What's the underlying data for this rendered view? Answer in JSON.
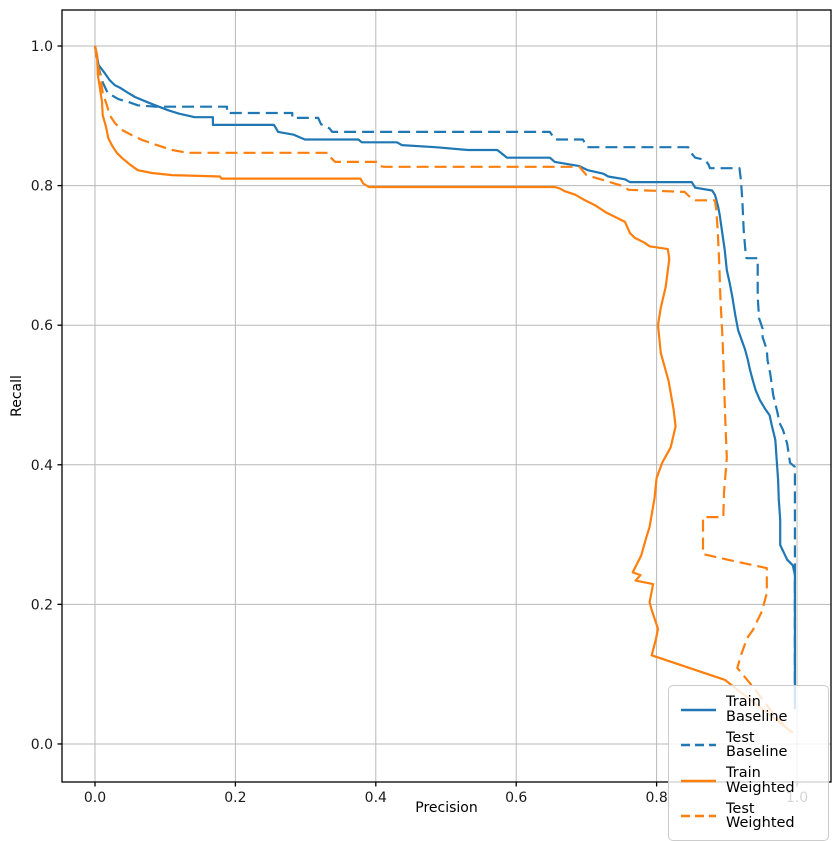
{
  "figure": {
    "background": "#ffffff",
    "grid_color": "#b8b8b8",
    "spine_color": "#000000",
    "tick_label_color": "#1a1a1a",
    "legend_border_color": "#cccccc"
  },
  "chart_data": {
    "type": "line",
    "title": "",
    "xlabel": "Precision",
    "ylabel": "Recall",
    "xlim": [
      -0.047,
      1.0484
    ],
    "ylim": [
      -0.0545,
      1.0516
    ],
    "xticks": [
      0.0,
      0.2,
      0.4,
      0.6,
      0.8,
      1.0
    ],
    "yticks": [
      0.0,
      0.2,
      0.4,
      0.6,
      0.8,
      1.0
    ],
    "xtick_labels": [
      "0.0",
      "0.2",
      "0.4",
      "0.6",
      "0.8",
      "1.0"
    ],
    "ytick_labels": [
      "0.0",
      "0.2",
      "0.4",
      "0.6",
      "0.8",
      "1.0"
    ],
    "grid": true,
    "legend_position": "lower right",
    "series": [
      {
        "name": "Train Baseline",
        "color": "#1f77b4",
        "style": "solid",
        "points": [
          [
            0.0,
            1.0
          ],
          [
            0.003,
            0.985
          ],
          [
            0.005,
            0.973
          ],
          [
            0.014,
            0.961
          ],
          [
            0.021,
            0.951
          ],
          [
            0.028,
            0.944
          ],
          [
            0.036,
            0.94
          ],
          [
            0.047,
            0.933
          ],
          [
            0.057,
            0.927
          ],
          [
            0.078,
            0.918
          ],
          [
            0.104,
            0.908
          ],
          [
            0.12,
            0.903
          ],
          [
            0.142,
            0.898
          ],
          [
            0.168,
            0.898
          ],
          [
            0.168,
            0.887
          ],
          [
            0.255,
            0.887
          ],
          [
            0.261,
            0.877
          ],
          [
            0.283,
            0.873
          ],
          [
            0.299,
            0.866
          ],
          [
            0.375,
            0.866
          ],
          [
            0.38,
            0.862
          ],
          [
            0.43,
            0.862
          ],
          [
            0.437,
            0.858
          ],
          [
            0.485,
            0.855
          ],
          [
            0.531,
            0.851
          ],
          [
            0.573,
            0.851
          ],
          [
            0.587,
            0.84
          ],
          [
            0.648,
            0.84
          ],
          [
            0.655,
            0.834
          ],
          [
            0.69,
            0.828
          ],
          [
            0.702,
            0.822
          ],
          [
            0.724,
            0.817
          ],
          [
            0.731,
            0.813
          ],
          [
            0.755,
            0.809
          ],
          [
            0.762,
            0.805
          ],
          [
            0.85,
            0.805
          ],
          [
            0.855,
            0.797
          ],
          [
            0.879,
            0.793
          ],
          [
            0.883,
            0.787
          ],
          [
            0.885,
            0.78
          ],
          [
            0.888,
            0.768
          ],
          [
            0.89,
            0.757
          ],
          [
            0.893,
            0.736
          ],
          [
            0.897,
            0.708
          ],
          [
            0.9,
            0.679
          ],
          [
            0.904,
            0.661
          ],
          [
            0.908,
            0.64
          ],
          [
            0.912,
            0.615
          ],
          [
            0.916,
            0.593
          ],
          [
            0.921,
            0.579
          ],
          [
            0.926,
            0.565
          ],
          [
            0.93,
            0.55
          ],
          [
            0.933,
            0.536
          ],
          [
            0.937,
            0.521
          ],
          [
            0.941,
            0.507
          ],
          [
            0.947,
            0.493
          ],
          [
            0.954,
            0.481
          ],
          [
            0.961,
            0.471
          ],
          [
            0.964,
            0.457
          ],
          [
            0.969,
            0.436
          ],
          [
            0.971,
            0.407
          ],
          [
            0.973,
            0.378
          ],
          [
            0.974,
            0.35
          ],
          [
            0.976,
            0.321
          ],
          [
            0.976,
            0.285
          ],
          [
            0.986,
            0.264
          ],
          [
            0.994,
            0.256
          ],
          [
            0.997,
            0.242
          ],
          [
            0.997,
            0.05
          ]
        ]
      },
      {
        "name": "Test Baseline",
        "color": "#1f77b4",
        "style": "dashed",
        "points": [
          [
            0.0,
            1.0
          ],
          [
            0.004,
            0.973
          ],
          [
            0.011,
            0.948
          ],
          [
            0.018,
            0.933
          ],
          [
            0.033,
            0.924
          ],
          [
            0.047,
            0.92
          ],
          [
            0.061,
            0.915
          ],
          [
            0.086,
            0.913
          ],
          [
            0.188,
            0.913
          ],
          [
            0.188,
            0.904
          ],
          [
            0.281,
            0.904
          ],
          [
            0.281,
            0.897
          ],
          [
            0.318,
            0.897
          ],
          [
            0.322,
            0.888
          ],
          [
            0.334,
            0.882
          ],
          [
            0.338,
            0.877
          ],
          [
            0.648,
            0.877
          ],
          [
            0.655,
            0.866
          ],
          [
            0.695,
            0.866
          ],
          [
            0.701,
            0.855
          ],
          [
            0.845,
            0.855
          ],
          [
            0.849,
            0.847
          ],
          [
            0.855,
            0.84
          ],
          [
            0.869,
            0.837
          ],
          [
            0.874,
            0.83
          ],
          [
            0.876,
            0.825
          ],
          [
            0.918,
            0.825
          ],
          [
            0.92,
            0.808
          ],
          [
            0.922,
            0.78
          ],
          [
            0.924,
            0.736
          ],
          [
            0.927,
            0.7
          ],
          [
            0.928,
            0.696
          ],
          [
            0.944,
            0.696
          ],
          [
            0.944,
            0.64
          ],
          [
            0.946,
            0.61
          ],
          [
            0.951,
            0.595
          ],
          [
            0.951,
            0.583
          ],
          [
            0.957,
            0.565
          ],
          [
            0.958,
            0.55
          ],
          [
            0.962,
            0.53
          ],
          [
            0.966,
            0.5
          ],
          [
            0.972,
            0.475
          ],
          [
            0.975,
            0.46
          ],
          [
            0.98,
            0.45
          ],
          [
            0.986,
            0.43
          ],
          [
            0.99,
            0.403
          ],
          [
            0.997,
            0.397
          ],
          [
            0.997,
            0.06
          ]
        ]
      },
      {
        "name": "Train Weighted",
        "color": "#ff7f0e",
        "style": "solid",
        "points": [
          [
            0.0,
            1.0
          ],
          [
            0.003,
            0.987
          ],
          [
            0.004,
            0.959
          ],
          [
            0.007,
            0.94
          ],
          [
            0.01,
            0.92
          ],
          [
            0.011,
            0.901
          ],
          [
            0.016,
            0.883
          ],
          [
            0.019,
            0.868
          ],
          [
            0.024,
            0.858
          ],
          [
            0.031,
            0.847
          ],
          [
            0.038,
            0.84
          ],
          [
            0.05,
            0.83
          ],
          [
            0.061,
            0.822
          ],
          [
            0.081,
            0.818
          ],
          [
            0.11,
            0.815
          ],
          [
            0.178,
            0.813
          ],
          [
            0.18,
            0.81
          ],
          [
            0.378,
            0.81
          ],
          [
            0.382,
            0.803
          ],
          [
            0.39,
            0.798
          ],
          [
            0.655,
            0.798
          ],
          [
            0.662,
            0.796
          ],
          [
            0.669,
            0.792
          ],
          [
            0.684,
            0.787
          ],
          [
            0.698,
            0.779
          ],
          [
            0.712,
            0.772
          ],
          [
            0.727,
            0.762
          ],
          [
            0.741,
            0.755
          ],
          [
            0.755,
            0.748
          ],
          [
            0.762,
            0.732
          ],
          [
            0.769,
            0.725
          ],
          [
            0.783,
            0.718
          ],
          [
            0.79,
            0.713
          ],
          [
            0.816,
            0.709
          ],
          [
            0.818,
            0.695
          ],
          [
            0.813,
            0.655
          ],
          [
            0.806,
            0.625
          ],
          [
            0.802,
            0.6
          ],
          [
            0.806,
            0.56
          ],
          [
            0.817,
            0.52
          ],
          [
            0.824,
            0.48
          ],
          [
            0.827,
            0.455
          ],
          [
            0.82,
            0.425
          ],
          [
            0.808,
            0.403
          ],
          [
            0.8,
            0.381
          ],
          [
            0.797,
            0.352
          ],
          [
            0.79,
            0.311
          ],
          [
            0.785,
            0.295
          ],
          [
            0.778,
            0.27
          ],
          [
            0.766,
            0.246
          ],
          [
            0.777,
            0.242
          ],
          [
            0.77,
            0.234
          ],
          [
            0.795,
            0.229
          ],
          [
            0.79,
            0.203
          ],
          [
            0.793,
            0.192
          ],
          [
            0.802,
            0.165
          ],
          [
            0.799,
            0.15
          ],
          [
            0.793,
            0.127
          ],
          [
            0.897,
            0.092
          ],
          [
            0.994,
            0.016
          ]
        ]
      },
      {
        "name": "Test Weighted",
        "color": "#ff7f0e",
        "style": "dashed",
        "points": [
          [
            0.0,
            1.0
          ],
          [
            0.004,
            0.973
          ],
          [
            0.009,
            0.948
          ],
          [
            0.011,
            0.933
          ],
          [
            0.017,
            0.915
          ],
          [
            0.021,
            0.901
          ],
          [
            0.028,
            0.89
          ],
          [
            0.038,
            0.88
          ],
          [
            0.053,
            0.872
          ],
          [
            0.068,
            0.865
          ],
          [
            0.088,
            0.858
          ],
          [
            0.11,
            0.851
          ],
          [
            0.132,
            0.847
          ],
          [
            0.332,
            0.847
          ],
          [
            0.336,
            0.84
          ],
          [
            0.342,
            0.834
          ],
          [
            0.402,
            0.834
          ],
          [
            0.406,
            0.828
          ],
          [
            0.412,
            0.827
          ],
          [
            0.69,
            0.827
          ],
          [
            0.7,
            0.815
          ],
          [
            0.75,
            0.8
          ],
          [
            0.76,
            0.794
          ],
          [
            0.84,
            0.791
          ],
          [
            0.846,
            0.785
          ],
          [
            0.855,
            0.779
          ],
          [
            0.883,
            0.779
          ],
          [
            0.885,
            0.765
          ],
          [
            0.887,
            0.736
          ],
          [
            0.889,
            0.693
          ],
          [
            0.891,
            0.636
          ],
          [
            0.894,
            0.579
          ],
          [
            0.896,
            0.52
          ],
          [
            0.898,
            0.46
          ],
          [
            0.9,
            0.41
          ],
          [
            0.896,
            0.36
          ],
          [
            0.895,
            0.325
          ],
          [
            0.866,
            0.325
          ],
          [
            0.866,
            0.272
          ],
          [
            0.91,
            0.262
          ],
          [
            0.957,
            0.252
          ],
          [
            0.957,
            0.216
          ],
          [
            0.95,
            0.19
          ],
          [
            0.937,
            0.163
          ],
          [
            0.929,
            0.152
          ],
          [
            0.92,
            0.127
          ],
          [
            0.915,
            0.109
          ],
          [
            0.937,
            0.082
          ],
          [
            0.962,
            0.049
          ],
          [
            0.99,
            0.017
          ]
        ]
      }
    ]
  }
}
